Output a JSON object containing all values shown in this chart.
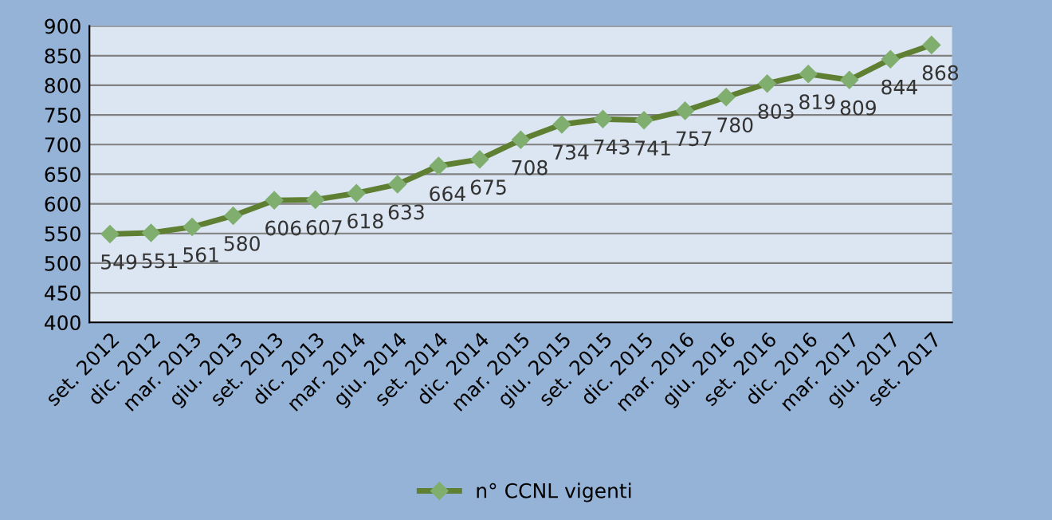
{
  "chart_data": {
    "type": "line",
    "categories": [
      "set. 2012",
      "dic. 2012",
      "mar. 2013",
      "giu. 2013",
      "set. 2013",
      "dic. 2013",
      "mar. 2014",
      "giu. 2014",
      "set. 2014",
      "dic. 2014",
      "mar. 2015",
      "giu. 2015",
      "set. 2015",
      "dic. 2015",
      "mar. 2016",
      "giu. 2016",
      "set. 2016",
      "dic. 2016",
      "mar. 2017",
      "giu. 2017",
      "set. 2017"
    ],
    "series": [
      {
        "name": "n° CCNL vigenti",
        "color": "#5f7f32",
        "values": [
          549,
          551,
          561,
          580,
          606,
          607,
          618,
          633,
          664,
          675,
          708,
          734,
          743,
          741,
          757,
          780,
          803,
          819,
          809,
          844,
          868
        ]
      }
    ],
    "ylim": [
      400,
      900
    ],
    "yticks": [
      400,
      450,
      500,
      550,
      600,
      650,
      700,
      750,
      800,
      850,
      900
    ],
    "grid": "y",
    "legend": "bottom",
    "marker": "diamond",
    "line_style": "solid",
    "data_labels": true
  }
}
